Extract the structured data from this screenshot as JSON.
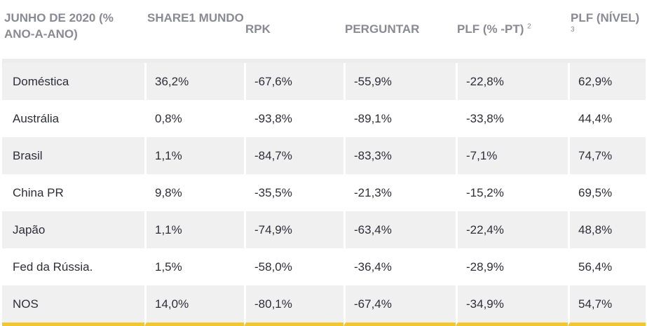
{
  "table": {
    "headers": [
      {
        "label": "JUNHO DE 2020 (% ANO-A-ANO)",
        "note": ""
      },
      {
        "label": "SHARE1 MUNDO",
        "note": ""
      },
      {
        "label": "RPK",
        "note": ""
      },
      {
        "label": "PERGUNTAR",
        "note": ""
      },
      {
        "label": "PLF (% -PT)",
        "note": "2"
      },
      {
        "label": "PLF (NÍVEL)",
        "note": "3"
      }
    ],
    "rows": [
      {
        "region": "Doméstica",
        "share": "36,2%",
        "rpk": "-67,6%",
        "ask": "-55,9%",
        "plf_pt": "-22,8%",
        "plf_level": "62,9%"
      },
      {
        "region": "Austrália",
        "share": "0,8%",
        "rpk": "-93,8%",
        "ask": "-89,1%",
        "plf_pt": "-33,8%",
        "plf_level": "44,4%"
      },
      {
        "region": "Brasil",
        "share": "1,1%",
        "rpk": "-84,7%",
        "ask": "-83,3%",
        "plf_pt": "-7,1%",
        "plf_level": "74,7%"
      },
      {
        "region": "China PR",
        "share": "9,8%",
        "rpk": "-35,5%",
        "ask": "-21,3%",
        "plf_pt": "-15,2%",
        "plf_level": "69,5%"
      },
      {
        "region": "Japão",
        "share": "1,1%",
        "rpk": "-74,9%",
        "ask": "-63,4%",
        "plf_pt": "-22,4%",
        "plf_level": "48,8%"
      },
      {
        "region": "Fed da Rússia.",
        "share": "1,5%",
        "rpk": "-58,0%",
        "ask": "-36,4%",
        "plf_pt": "-28,9%",
        "plf_level": "56,4%"
      },
      {
        "region": "NOS",
        "share": "14,0%",
        "rpk": "-80,1%",
        "ask": "-67,4%",
        "plf_pt": "-34,9%",
        "plf_level": "54,7%"
      }
    ]
  },
  "colors": {
    "header_text": "#8a8a94",
    "body_text": "#2e2e38",
    "row_shade": "#f0f0f0",
    "accent_bottom_border": "#f2c62f"
  }
}
